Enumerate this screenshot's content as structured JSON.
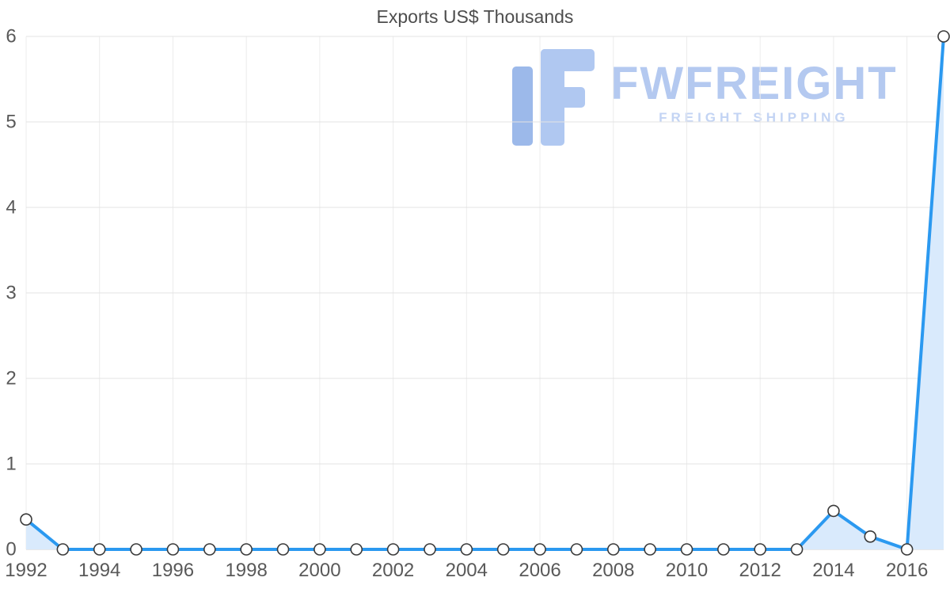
{
  "chart_data": {
    "type": "line",
    "title": "Exports US$ Thousands",
    "series": [
      {
        "name": "Exports US$ Thousands",
        "values": [
          0.35,
          0,
          0,
          0,
          0,
          0,
          0,
          0,
          0,
          0,
          0,
          0,
          0,
          0,
          0,
          0,
          0,
          0,
          0,
          0,
          0,
          0,
          0.45,
          0.15,
          0,
          6
        ]
      }
    ],
    "x": [
      1992,
      1993,
      1994,
      1995,
      1996,
      1997,
      1998,
      1999,
      2000,
      2001,
      2002,
      2003,
      2004,
      2005,
      2006,
      2007,
      2008,
      2009,
      2010,
      2011,
      2012,
      2013,
      2014,
      2015,
      2016,
      2017
    ],
    "xticks": [
      1992,
      1994,
      1996,
      1998,
      2000,
      2002,
      2004,
      2006,
      2008,
      2010,
      2012,
      2014,
      2016
    ],
    "yticks": [
      0,
      1,
      2,
      3,
      4,
      5,
      6
    ],
    "xlim": [
      1992,
      2017
    ],
    "ylim": [
      0,
      6
    ],
    "xlabel": "",
    "ylabel": "",
    "grid": true,
    "legend": "none"
  },
  "watermark": {
    "brand": "FWFREIGHT",
    "tagline": "FREIGHT SHIPPING"
  },
  "colors": {
    "line": "#2b99f0",
    "area": "#d9eafc",
    "marker_stroke": "#3a3a3a",
    "marker_fill": "#ffffff",
    "grid_v": "#ececec",
    "grid_h": "#e3e3e3",
    "axis": "#d0d0d0",
    "tick": "#595959",
    "title": "#4d4d4d",
    "watermark_brand": "#b4c9f0",
    "watermark_tagline": "#c3d4f4",
    "watermark_icon_dark": "#9cb9ea",
    "watermark_icon_light": "#b0c8f1"
  }
}
